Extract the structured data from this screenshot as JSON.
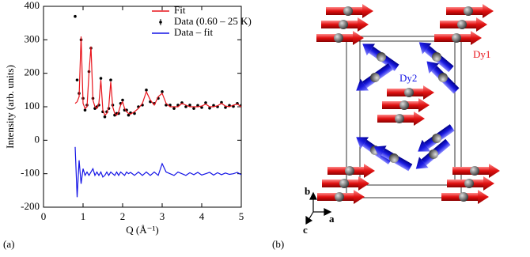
{
  "chart_data": {
    "type": "line",
    "y_label": "Intensity (arb. units)",
    "x_label": "Q (Å⁻¹)",
    "xlim": [
      0,
      5
    ],
    "xticks": [
      0,
      1,
      2,
      3,
      4,
      5
    ],
    "ylim": [
      -200,
      400
    ],
    "yticks": [
      -200,
      -100,
      0,
      100,
      200,
      300,
      400
    ],
    "x": [
      0.8,
      0.85,
      0.9,
      0.95,
      1.0,
      1.05,
      1.1,
      1.15,
      1.2,
      1.25,
      1.3,
      1.35,
      1.4,
      1.45,
      1.5,
      1.55,
      1.6,
      1.65,
      1.7,
      1.75,
      1.8,
      1.85,
      1.9,
      1.95,
      2.0,
      2.05,
      2.1,
      2.15,
      2.2,
      2.3,
      2.4,
      2.5,
      2.6,
      2.7,
      2.8,
      2.9,
      3.0,
      3.1,
      3.2,
      3.3,
      3.4,
      3.5,
      3.6,
      3.7,
      3.8,
      3.9,
      4.0,
      4.1,
      4.2,
      4.3,
      4.4,
      4.5,
      4.6,
      4.7,
      4.8,
      4.9,
      5.0
    ],
    "legend": "upper right",
    "series": [
      {
        "name": "Data (0.60 – 25 K)",
        "color": "#000000",
        "style": "points",
        "values": [
          370,
          180,
          140,
          300,
          125,
          90,
          105,
          205,
          275,
          125,
          95,
          100,
          105,
          185,
          85,
          70,
          85,
          95,
          180,
          105,
          75,
          80,
          80,
          110,
          120,
          90,
          90,
          75,
          82,
          80,
          100,
          105,
          150,
          115,
          110,
          125,
          145,
          105,
          105,
          95,
          105,
          112,
          100,
          105,
          95,
          104,
          98,
          112,
          96,
          104,
          100,
          113,
          98,
          104,
          101,
          110,
          104
        ]
      },
      {
        "name": "Fit",
        "color": "#e8141b",
        "style": "line",
        "values": [
          110,
          115,
          130,
          310,
          110,
          95,
          100,
          200,
          280,
          120,
          100,
          95,
          110,
          180,
          90,
          75,
          80,
          100,
          175,
          100,
          80,
          75,
          85,
          105,
          115,
          95,
          85,
          80,
          78,
          85,
          95,
          110,
          145,
          120,
          105,
          130,
          140,
          110,
          100,
          100,
          100,
          110,
          105,
          100,
          100,
          100,
          102,
          108,
          100,
          100,
          103,
          110,
          102,
          100,
          105,
          108,
          100
        ]
      },
      {
        "name": "Data – fit",
        "color": "#1414e6",
        "style": "line",
        "values": [
          -20,
          -170,
          -60,
          -130,
          -85,
          -105,
          -95,
          -105,
          -95,
          -85,
          -105,
          -95,
          -105,
          -95,
          -110,
          -105,
          -95,
          -105,
          -95,
          -100,
          -105,
          -95,
          -105,
          -95,
          -100,
          -105,
          -95,
          -100,
          -96,
          -105,
          -95,
          -105,
          -95,
          -105,
          -95,
          -105,
          -70,
          -95,
          -100,
          -105,
          -95,
          -100,
          -105,
          -97,
          -103,
          -96,
          -104,
          -100,
          -96,
          -104,
          -97,
          -103,
          -98,
          -102,
          -100,
          -96,
          -103
        ]
      }
    ]
  },
  "panel_labels": [
    "(a)",
    "(b)"
  ],
  "diagram": {
    "dy1": "Dy1",
    "dy2": "Dy2",
    "axis_a": "a",
    "axis_b": "b",
    "axis_c": "c"
  }
}
